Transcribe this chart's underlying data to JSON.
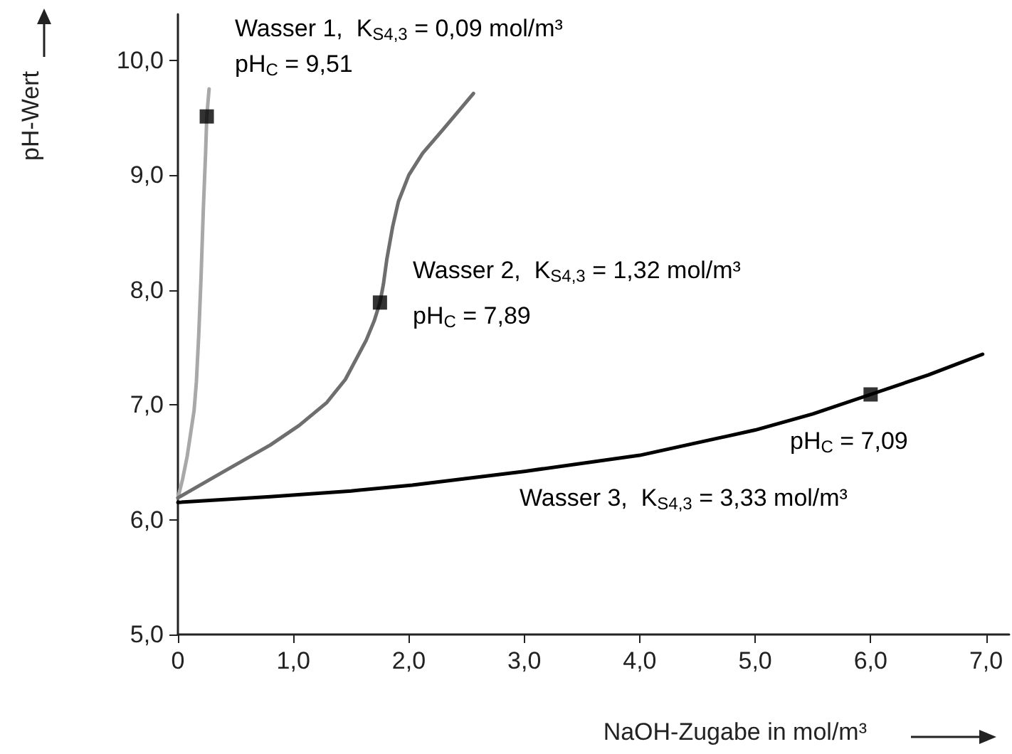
{
  "chart_data": {
    "type": "line",
    "xlabel": "NaOH-Zugabe in mol/m³",
    "ylabel": "pH-Wert",
    "xlim": [
      0,
      7.2
    ],
    "ylim": [
      5,
      10.4
    ],
    "xticks": [
      {
        "value": 0,
        "label": "0"
      },
      {
        "value": 1,
        "label": "1,0"
      },
      {
        "value": 2,
        "label": "2,0"
      },
      {
        "value": 3,
        "label": "3,0"
      },
      {
        "value": 4,
        "label": "4,0"
      },
      {
        "value": 5,
        "label": "5,0"
      },
      {
        "value": 6,
        "label": "6,0"
      },
      {
        "value": 7,
        "label": "7,0"
      }
    ],
    "yticks": [
      {
        "value": 5,
        "label": "5,0"
      },
      {
        "value": 6,
        "label": "6,0"
      },
      {
        "value": 7,
        "label": "7,0"
      },
      {
        "value": 8,
        "label": "8,0"
      },
      {
        "value": 9,
        "label": "9,0"
      },
      {
        "value": 10,
        "label": "10,0"
      }
    ],
    "grid": false,
    "line_style": "solid",
    "series": [
      {
        "color": "#a8a8a8",
        "marker": "none",
        "x": [
          0,
          0.04,
          0.08,
          0.11,
          0.14,
          0.16,
          0.18,
          0.2,
          0.22,
          0.24,
          0.25,
          0.27
        ],
        "values": [
          6.19,
          6.35,
          6.55,
          6.75,
          6.95,
          7.2,
          7.6,
          8.1,
          8.7,
          9.2,
          9.51,
          9.75
        ]
      },
      {
        "color": "#6e6e6e",
        "marker": "none",
        "x": [
          0,
          0.4,
          0.8,
          1.05,
          1.29,
          1.45,
          1.63,
          1.7,
          1.75,
          1.78,
          1.81,
          1.86,
          1.91,
          2.0,
          2.12,
          2.3,
          2.56
        ],
        "values": [
          6.19,
          6.42,
          6.65,
          6.82,
          7.02,
          7.22,
          7.56,
          7.73,
          7.89,
          8.05,
          8.27,
          8.55,
          8.77,
          9.0,
          9.19,
          9.4,
          9.71
        ]
      },
      {
        "color": "#000000",
        "marker": "none",
        "x": [
          0,
          0.8,
          1.5,
          2.03,
          3.0,
          4.0,
          5.0,
          5.5,
          6.0,
          6.5,
          6.97
        ],
        "values": [
          6.15,
          6.2,
          6.25,
          6.3,
          6.42,
          6.56,
          6.78,
          6.92,
          7.09,
          7.26,
          7.44
        ]
      },
      {
        "type": "scatter",
        "color": "#000000",
        "marker": "square",
        "x": [
          0.25,
          1.75,
          6.0
        ],
        "values": [
          9.51,
          7.89,
          7.09
        ]
      }
    ],
    "annotations": [
      "Wasser 1,  K$_{S4,3}$ = 0,09 mol/m³",
      "pH$_{C}$ = 9,51",
      "Wasser 2,  K$_{S4,3}$ = 1,32 mol/m³",
      "pH$_{C}$ = 7,89",
      "pH$_{C}$ = 7,09",
      "Wasser 3,  K$_{S4,3}$ = 3,33 mol/m³"
    ]
  }
}
